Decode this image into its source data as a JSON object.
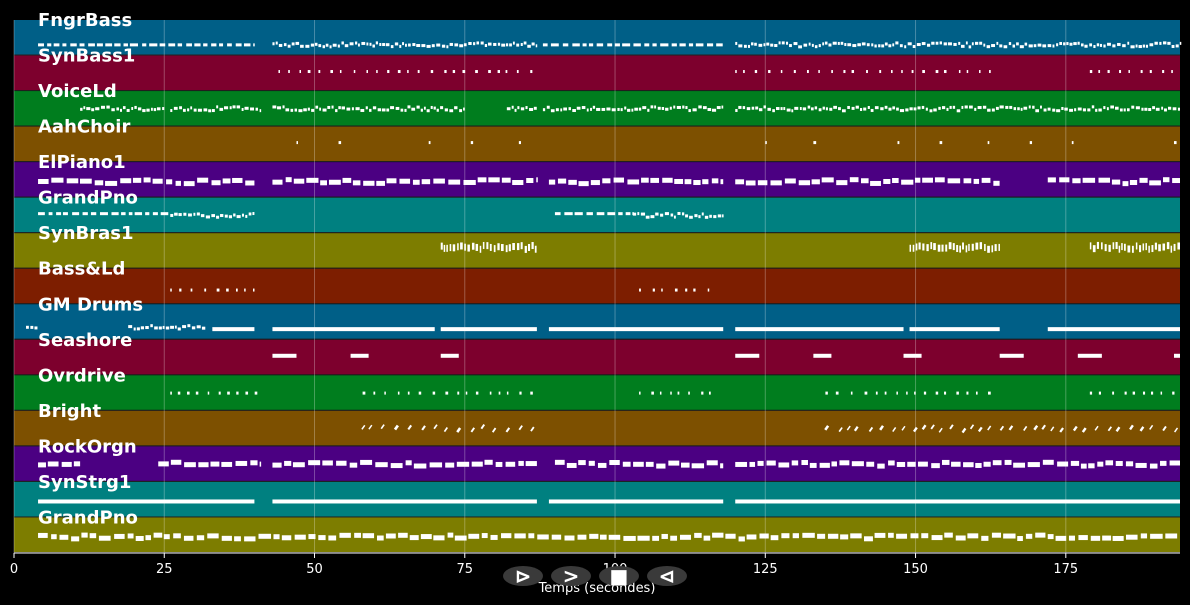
{
  "chart_data": {
    "type": "piano-roll",
    "xlabel": "Temps (secondes)",
    "xlim": [
      0,
      194
    ],
    "xticks": [
      0,
      25,
      50,
      75,
      100,
      125,
      150,
      175
    ],
    "grid": true,
    "tracks": [
      {
        "name": "FngrBass",
        "color": "#005f87",
        "segments": [
          [
            4,
            40,
            0.7,
            "dashes"
          ],
          [
            43,
            87,
            0.7,
            "dense"
          ],
          [
            88,
            118,
            0.7,
            "dashes"
          ],
          [
            120,
            194,
            0.7,
            "dense"
          ]
        ]
      },
      {
        "name": "SynBass1",
        "color": "#7d002d",
        "segments": [
          [
            44,
            87,
            0.45,
            "dots"
          ],
          [
            120,
            164,
            0.45,
            "dots"
          ],
          [
            179,
            194,
            0.45,
            "dots"
          ]
        ]
      },
      {
        "name": "VoiceLd",
        "color": "#007d1e",
        "segments": [
          [
            11,
            25,
            0.5,
            "dense"
          ],
          [
            26,
            41,
            0.5,
            "dense"
          ],
          [
            43,
            75,
            0.5,
            "dense"
          ],
          [
            82,
            87,
            0.5,
            "dense"
          ],
          [
            88,
            118,
            0.5,
            "dense"
          ],
          [
            120,
            194,
            0.5,
            "dense"
          ]
        ]
      },
      {
        "name": "AahChoir",
        "color": "#7d5000",
        "segments": [
          [
            47,
            48,
            0.45,
            "dots"
          ],
          [
            54,
            55,
            0.45,
            "dots"
          ],
          [
            69,
            70,
            0.45,
            "dots"
          ],
          [
            76,
            77,
            0.45,
            "dots"
          ],
          [
            84,
            85,
            0.45,
            "dots"
          ],
          [
            125,
            126,
            0.45,
            "dots"
          ],
          [
            133,
            134,
            0.45,
            "dots"
          ],
          [
            147,
            148,
            0.45,
            "dots"
          ],
          [
            154,
            155,
            0.45,
            "dots"
          ],
          [
            162,
            163,
            0.45,
            "dots"
          ],
          [
            169,
            170,
            0.45,
            "dots"
          ],
          [
            176,
            177,
            0.45,
            "dots"
          ],
          [
            193,
            194,
            0.45,
            "dots"
          ]
        ]
      },
      {
        "name": "ElPiano1",
        "color": "#4b0082",
        "segments": [
          [
            4,
            40,
            0.55,
            "blocks"
          ],
          [
            43,
            87,
            0.55,
            "blocks"
          ],
          [
            89,
            118,
            0.55,
            "blocks"
          ],
          [
            120,
            164,
            0.55,
            "blocks"
          ],
          [
            172,
            194,
            0.55,
            "blocks"
          ]
        ]
      },
      {
        "name": "GrandPno",
        "color": "#008080",
        "segments": [
          [
            4,
            26,
            0.45,
            "dashes"
          ],
          [
            26,
            40,
            0.5,
            "dense"
          ],
          [
            90,
            103,
            0.45,
            "dashes"
          ],
          [
            103,
            118,
            0.5,
            "dense"
          ]
        ]
      },
      {
        "name": "SynBras1",
        "color": "#7d7d00",
        "segments": [
          [
            71,
            87,
            0.4,
            "chords"
          ],
          [
            149,
            164,
            0.4,
            "chords"
          ],
          [
            179,
            194,
            0.4,
            "chords"
          ]
        ]
      },
      {
        "name": "Bass&Ld",
        "color": "#7d1e00",
        "segments": [
          [
            26,
            40,
            0.6,
            "dots"
          ],
          [
            104,
            117,
            0.6,
            "dots"
          ]
        ]
      },
      {
        "name": "GM Drums",
        "color": "#005f87",
        "segments": [
          [
            2,
            4,
            0.65,
            "dense"
          ],
          [
            19,
            32,
            0.65,
            "dense"
          ],
          [
            33,
            40,
            0.7,
            "solid"
          ],
          [
            43,
            70,
            0.7,
            "solid"
          ],
          [
            71,
            87,
            0.7,
            "solid"
          ],
          [
            89,
            118,
            0.7,
            "solid"
          ],
          [
            120,
            148,
            0.7,
            "solid"
          ],
          [
            149,
            164,
            0.7,
            "solid"
          ],
          [
            172,
            194,
            0.7,
            "solid"
          ]
        ]
      },
      {
        "name": "Seashore",
        "color": "#7d002d",
        "segments": [
          [
            43,
            47,
            0.45,
            "solid"
          ],
          [
            56,
            59,
            0.45,
            "solid"
          ],
          [
            71,
            74,
            0.45,
            "solid"
          ],
          [
            120,
            124,
            0.45,
            "solid"
          ],
          [
            133,
            136,
            0.45,
            "solid"
          ],
          [
            148,
            151,
            0.45,
            "solid"
          ],
          [
            164,
            168,
            0.45,
            "solid"
          ],
          [
            177,
            181,
            0.45,
            "solid"
          ],
          [
            193,
            194,
            0.45,
            "solid"
          ]
        ]
      },
      {
        "name": "Ovrdrive",
        "color": "#007d1e",
        "segments": [
          [
            26,
            41,
            0.5,
            "dots"
          ],
          [
            58,
            87,
            0.5,
            "dots"
          ],
          [
            104,
            118,
            0.5,
            "dots"
          ],
          [
            135,
            164,
            0.5,
            "dots"
          ],
          [
            179,
            194,
            0.5,
            "dots"
          ]
        ]
      },
      {
        "name": "Bright",
        "color": "#7d5000",
        "segments": [
          [
            58,
            87,
            0.5,
            "slashes"
          ],
          [
            135,
            194,
            0.5,
            "slashes"
          ]
        ]
      },
      {
        "name": "RockOrgn",
        "color": "#4b0082",
        "segments": [
          [
            4,
            11,
            0.5,
            "blocks"
          ],
          [
            24,
            41,
            0.5,
            "blocks"
          ],
          [
            43,
            87,
            0.5,
            "blocks"
          ],
          [
            90,
            118,
            0.5,
            "blocks"
          ],
          [
            120,
            194,
            0.5,
            "blocks"
          ]
        ]
      },
      {
        "name": "SynStrg1",
        "color": "#008080",
        "segments": [
          [
            4,
            40,
            0.55,
            "solid"
          ],
          [
            43,
            87,
            0.55,
            "solid"
          ],
          [
            89,
            118,
            0.55,
            "solid"
          ],
          [
            120,
            194,
            0.55,
            "solid"
          ]
        ]
      },
      {
        "name": "GrandPno",
        "color": "#7d7d00",
        "segments": [
          [
            4,
            194,
            0.55,
            "blocks"
          ]
        ]
      }
    ]
  },
  "controls": [
    {
      "name": "play-icon",
      "glyph": "⊳"
    },
    {
      "name": "forward-icon",
      "glyph": ">"
    },
    {
      "name": "stop-icon",
      "glyph": "■"
    },
    {
      "name": "back-icon",
      "glyph": "⊲"
    }
  ]
}
